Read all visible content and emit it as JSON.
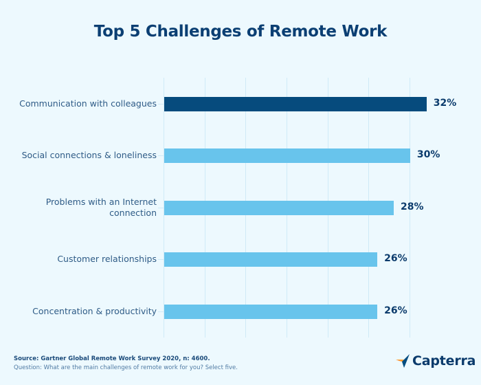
{
  "title": "Top 5 Challenges of Remote Work",
  "chart_data": {
    "type": "bar",
    "orientation": "horizontal",
    "title": "Top 5 Challenges of Remote Work",
    "categories": [
      "Communication with colleagues",
      "Social connections & loneliness",
      "Problems with an Internet connection",
      "Customer relationships",
      "Concentration & productivity"
    ],
    "values": [
      32,
      30,
      28,
      26,
      26
    ],
    "value_labels": [
      "32%",
      "30%",
      "28%",
      "26%",
      "26%"
    ],
    "xlabel": "",
    "ylabel": "",
    "xlim": [
      0,
      35
    ],
    "grid": true,
    "grid_step": 5,
    "legend": "none",
    "colors": {
      "highlight": "#064b7d",
      "default": "#68c4ec"
    }
  },
  "rows": [
    {
      "label": "Communication with colleagues",
      "value_label": "32%"
    },
    {
      "label": "Social connections & loneliness",
      "value_label": "30%"
    },
    {
      "label": "Problems with an Internet connection",
      "value_label": "28%"
    },
    {
      "label": "Customer relationships",
      "value_label": "26%"
    },
    {
      "label": "Concentration & productivity",
      "value_label": "26%"
    }
  ],
  "footer": {
    "source": "Source: Gartner Global Remote Work Survey 2020, n: 4600.",
    "question": "Question: What are the main challenges of remote work for you? Select five."
  },
  "logo": {
    "text": "Capterra",
    "icon": "capterra-arrow-icon"
  },
  "colors": {
    "background": "#edf9fe",
    "title": "#0b3f73",
    "gridline": "#cfeaf7"
  }
}
